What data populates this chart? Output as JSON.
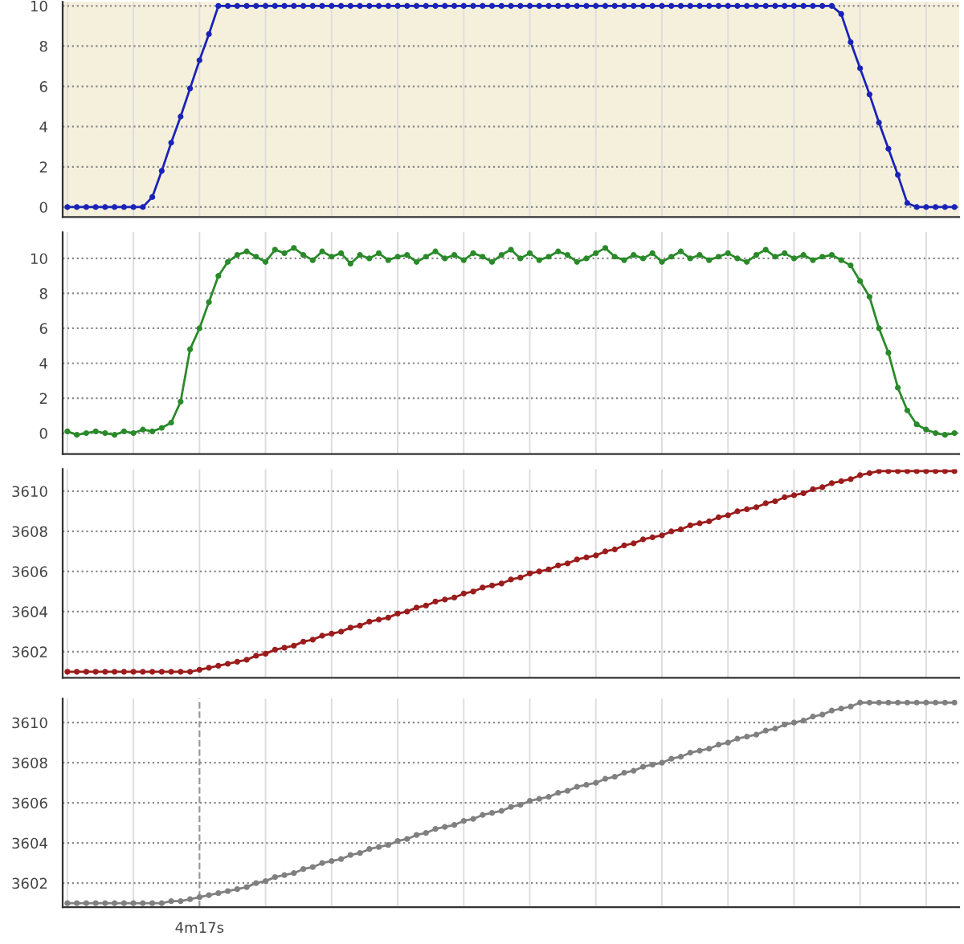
{
  "chart_data": [
    {
      "type": "line",
      "categories": [
        null,
        null,
        null,
        null,
        null,
        null,
        null,
        null,
        null,
        null,
        null,
        null,
        null,
        null,
        null,
        null,
        null,
        null,
        null,
        null,
        null,
        null,
        null,
        null,
        null,
        null,
        null,
        null,
        null,
        null,
        null,
        null,
        null,
        null,
        null,
        null,
        null,
        null,
        null,
        null,
        null,
        null,
        null,
        null,
        null,
        null,
        null,
        null,
        null,
        null,
        null,
        null,
        null,
        null,
        null,
        null,
        null,
        null,
        null,
        null,
        null,
        null,
        null,
        null,
        null,
        null,
        null,
        null,
        null,
        null,
        null,
        null,
        null,
        null,
        null,
        null,
        null,
        null,
        null,
        null,
        null,
        null,
        null,
        null,
        null,
        null,
        null,
        null,
        null,
        null,
        null,
        null,
        null,
        null,
        null
      ],
      "series": [
        {
          "color": "#1a23b8",
          "values": [
            0,
            0,
            0,
            0,
            0,
            0,
            0,
            0,
            0,
            0.5,
            1.8,
            3.2,
            4.5,
            5.9,
            7.3,
            8.6,
            10,
            10,
            10,
            10,
            10,
            10,
            10,
            10,
            10,
            10,
            10,
            10,
            10,
            10,
            10,
            10,
            10,
            10,
            10,
            10,
            10,
            10,
            10,
            10,
            10,
            10,
            10,
            10,
            10,
            10,
            10,
            10,
            10,
            10,
            10,
            10,
            10,
            10,
            10,
            10,
            10,
            10,
            10,
            10,
            10,
            10,
            10,
            10,
            10,
            10,
            10,
            10,
            10,
            10,
            10,
            10,
            10,
            10,
            10,
            10,
            10,
            10,
            10,
            10,
            10,
            10,
            9.6,
            8.2,
            6.9,
            5.6,
            4.2,
            2.9,
            1.6,
            0.2,
            0,
            0,
            0,
            0,
            0
          ]
        }
      ],
      "ylim": [
        -0.5,
        10.2
      ],
      "yticks": [
        0,
        2,
        4,
        6,
        8,
        10
      ],
      "grid": true,
      "marker": "circle",
      "line_style": "solid",
      "tick_labels": "y"
    },
    {
      "type": "line",
      "categories": [
        null,
        null,
        null,
        null,
        null,
        null,
        null,
        null,
        null,
        null,
        null,
        null,
        null,
        null,
        null,
        null,
        null,
        null,
        null,
        null,
        null,
        null,
        null,
        null,
        null,
        null,
        null,
        null,
        null,
        null,
        null,
        null,
        null,
        null,
        null,
        null,
        null,
        null,
        null,
        null,
        null,
        null,
        null,
        null,
        null,
        null,
        null,
        null,
        null,
        null,
        null,
        null,
        null,
        null,
        null,
        null,
        null,
        null,
        null,
        null,
        null,
        null,
        null,
        null,
        null,
        null,
        null,
        null,
        null,
        null,
        null,
        null,
        null,
        null,
        null,
        null,
        null,
        null,
        null,
        null,
        null,
        null,
        null,
        null,
        null,
        null,
        null,
        null,
        null,
        null,
        null,
        null,
        null,
        null,
        null
      ],
      "series": [
        {
          "color": "#2a8a2a",
          "values": [
            0.1,
            -0.1,
            0,
            0.1,
            0,
            -0.1,
            0.1,
            0,
            0.2,
            0.1,
            0.3,
            0.6,
            1.8,
            4.8,
            6.0,
            7.5,
            9.0,
            9.8,
            10.2,
            10.4,
            10.1,
            9.8,
            10.5,
            10.3,
            10.6,
            10.2,
            9.9,
            10.4,
            10.1,
            10.3,
            9.7,
            10.2,
            10.0,
            10.3,
            9.9,
            10.1,
            10.2,
            9.8,
            10.1,
            10.4,
            10.0,
            10.2,
            9.9,
            10.3,
            10.1,
            9.8,
            10.2,
            10.5,
            10.0,
            10.3,
            9.9,
            10.1,
            10.4,
            10.2,
            9.8,
            10.0,
            10.3,
            10.6,
            10.1,
            9.9,
            10.2,
            10.0,
            10.3,
            9.8,
            10.1,
            10.4,
            10.0,
            10.2,
            9.9,
            10.1,
            10.3,
            10.0,
            9.8,
            10.2,
            10.5,
            10.1,
            10.3,
            10.0,
            10.2,
            9.9,
            10.1,
            10.2,
            9.9,
            9.6,
            8.7,
            7.8,
            6.0,
            4.6,
            2.6,
            1.3,
            0.5,
            0.2,
            0,
            -0.1,
            0
          ]
        }
      ],
      "ylim": [
        -1.2,
        11.5
      ],
      "yticks": [
        0,
        2,
        4,
        6,
        8,
        10
      ],
      "grid": true,
      "marker": "circle",
      "line_style": "solid",
      "tick_labels": "y"
    },
    {
      "type": "line",
      "categories": [
        null,
        null,
        null,
        null,
        null,
        null,
        null,
        null,
        null,
        null,
        null,
        null,
        null,
        null,
        null,
        null,
        null,
        null,
        null,
        null,
        null,
        null,
        null,
        null,
        null,
        null,
        null,
        null,
        null,
        null,
        null,
        null,
        null,
        null,
        null,
        null,
        null,
        null,
        null,
        null,
        null,
        null,
        null,
        null,
        null,
        null,
        null,
        null,
        null,
        null,
        null,
        null,
        null,
        null,
        null,
        null,
        null,
        null,
        null,
        null,
        null,
        null,
        null,
        null,
        null,
        null,
        null,
        null,
        null,
        null,
        null,
        null,
        null,
        null,
        null,
        null,
        null,
        null,
        null,
        null,
        null,
        null,
        null,
        null,
        null,
        null,
        null,
        null,
        null,
        null,
        null,
        null,
        null,
        null,
        null
      ],
      "series": [
        {
          "color": "#9b1c1c",
          "values": [
            3601,
            3601,
            3601,
            3601,
            3601,
            3601,
            3601,
            3601,
            3601,
            3601,
            3601,
            3601,
            3601,
            3601,
            3601.1,
            3601.2,
            3601.3,
            3601.4,
            3601.5,
            3601.6,
            3601.8,
            3601.9,
            3602.1,
            3602.2,
            3602.3,
            3602.5,
            3602.6,
            3602.8,
            3602.9,
            3603.0,
            3603.2,
            3603.3,
            3603.5,
            3603.6,
            3603.7,
            3603.9,
            3604.0,
            3604.2,
            3604.3,
            3604.5,
            3604.6,
            3604.7,
            3604.9,
            3605.0,
            3605.2,
            3605.3,
            3605.4,
            3605.6,
            3605.7,
            3605.9,
            3606.0,
            3606.1,
            3606.3,
            3606.4,
            3606.6,
            3606.7,
            3606.8,
            3607.0,
            3607.1,
            3607.3,
            3607.4,
            3607.6,
            3607.7,
            3607.8,
            3608.0,
            3608.1,
            3608.3,
            3608.4,
            3608.5,
            3608.7,
            3608.8,
            3609.0,
            3609.1,
            3609.2,
            3609.4,
            3609.5,
            3609.7,
            3609.8,
            3609.9,
            3610.1,
            3610.2,
            3610.4,
            3610.5,
            3610.6,
            3610.8,
            3610.9,
            3611,
            3611,
            3611,
            3611,
            3611,
            3611,
            3611,
            3611,
            3611
          ]
        }
      ],
      "ylim": [
        3600.7,
        3611.1
      ],
      "yticks": [
        3602,
        3604,
        3606,
        3608,
        3610
      ],
      "grid": true,
      "marker": "circle",
      "line_style": "solid",
      "tick_labels": "y"
    },
    {
      "type": "line",
      "categories": [
        null,
        null,
        null,
        null,
        null,
        null,
        null,
        null,
        null,
        null,
        null,
        null,
        null,
        null,
        "4m17s",
        null,
        null,
        null,
        null,
        null,
        null,
        null,
        null,
        null,
        null,
        null,
        null,
        null,
        null,
        null,
        null,
        null,
        null,
        null,
        null,
        null,
        null,
        null,
        null,
        null,
        null,
        null,
        null,
        null,
        null,
        null,
        null,
        null,
        null,
        null,
        null,
        null,
        null,
        null,
        null,
        null,
        null,
        null,
        null,
        null,
        null,
        null,
        null,
        null,
        null,
        null,
        null,
        null,
        null,
        null,
        null,
        null,
        null,
        null,
        null,
        null,
        null,
        null,
        null,
        null,
        null,
        null,
        null,
        null,
        null,
        null,
        null,
        null,
        null,
        null,
        null,
        null,
        null,
        null,
        null
      ],
      "series": [
        {
          "color": "#808080",
          "values": [
            3601,
            3601,
            3601,
            3601,
            3601,
            3601,
            3601,
            3601,
            3601,
            3601,
            3601,
            3601.1,
            3601.1,
            3601.2,
            3601.3,
            3601.4,
            3601.5,
            3601.6,
            3601.7,
            3601.8,
            3602.0,
            3602.1,
            3602.3,
            3602.4,
            3602.5,
            3602.7,
            3602.8,
            3603.0,
            3603.1,
            3603.2,
            3603.4,
            3603.5,
            3603.7,
            3603.8,
            3603.9,
            3604.1,
            3604.2,
            3604.4,
            3604.5,
            3604.7,
            3604.8,
            3604.9,
            3605.1,
            3605.2,
            3605.4,
            3605.5,
            3605.6,
            3605.8,
            3605.9,
            3606.1,
            3606.2,
            3606.3,
            3606.5,
            3606.6,
            3606.8,
            3606.9,
            3607.0,
            3607.2,
            3607.3,
            3607.5,
            3607.6,
            3607.8,
            3607.9,
            3608.0,
            3608.2,
            3608.3,
            3608.5,
            3608.6,
            3608.7,
            3608.9,
            3609.0,
            3609.2,
            3609.3,
            3609.4,
            3609.6,
            3609.7,
            3609.9,
            3610.0,
            3610.1,
            3610.3,
            3610.4,
            3610.6,
            3610.7,
            3610.8,
            3611.0,
            3611,
            3611,
            3611,
            3611,
            3611,
            3611,
            3611,
            3611,
            3611,
            3611
          ]
        }
      ],
      "ylim": [
        3600.8,
        3611.2
      ],
      "yticks": [
        3602,
        3604,
        3606,
        3608,
        3610
      ],
      "grid": true,
      "marker": "circle",
      "line_style": "solid"
    }
  ]
}
